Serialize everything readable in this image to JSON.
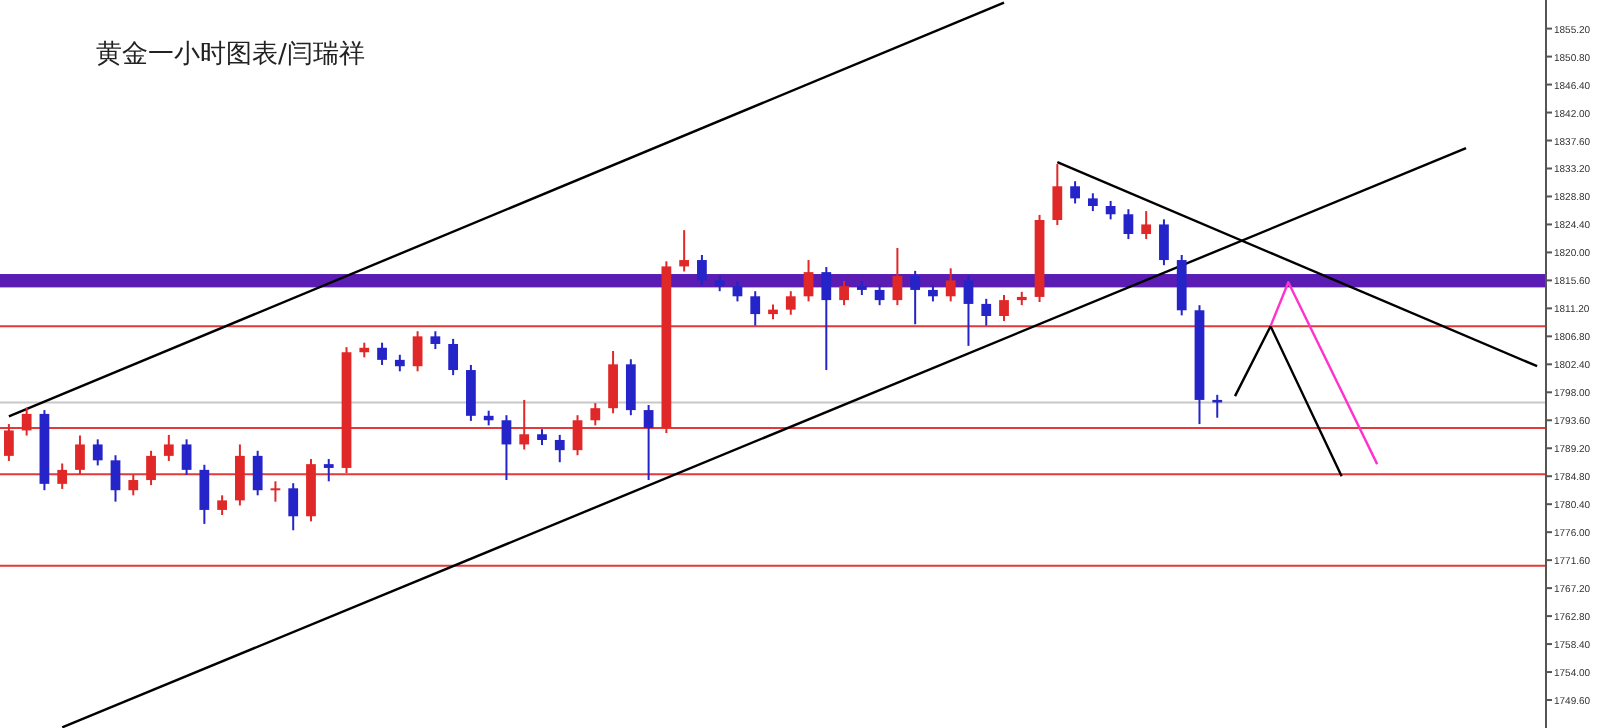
{
  "chart_data": {
    "type": "candlestick",
    "title": "黄金一小时图表/闫瑞祥",
    "categories": [
      null,
      null,
      null,
      null,
      null,
      null,
      null,
      null,
      null,
      null,
      null,
      null,
      null,
      null,
      null,
      null,
      null,
      null,
      null,
      null,
      null,
      null,
      null,
      null,
      null,
      null,
      null,
      null,
      null,
      null,
      null,
      null,
      null,
      null,
      null,
      null,
      null,
      null,
      null,
      null,
      null,
      null,
      null,
      null,
      null,
      null,
      null,
      null,
      null,
      null,
      null,
      null,
      null,
      null,
      null,
      null,
      null,
      null,
      null,
      null,
      null,
      null,
      null,
      null,
      null,
      null,
      null,
      null,
      null,
      null,
      null,
      null,
      null,
      null,
      null,
      null,
      null,
      null,
      null,
      null,
      null,
      null,
      null,
      null,
      null,
      null,
      null
    ],
    "colors": [
      "#e02828",
      "#e02828",
      "#2424c8",
      "#e02828",
      "#e02828",
      "#2424c8",
      "#2424c8",
      "#e02828",
      "#e02828",
      "#e02828",
      "#2424c8",
      "#2424c8",
      "#e02828",
      "#e02828",
      "#2424c8",
      "#e02828",
      "#2424c8",
      "#e02828",
      "#2424c8",
      "#e02828",
      "#e02828",
      "#2424c8",
      "#2424c8",
      "#e02828",
      "#2424c8",
      "#2424c8",
      "#2424c8",
      "#2424c8",
      "#2424c8",
      "#e02828",
      "#2424c8",
      "#2424c8",
      "#e02828",
      "#e02828",
      "#e02828",
      "#2424c8",
      "#2424c8",
      "#e02828",
      "#e02828",
      "#2424c8",
      "#2424c8",
      "#2424c8",
      "#2424c8",
      "#e02828",
      "#e02828",
      "#e02828",
      "#2424c8",
      "#e02828",
      "#2424c8",
      "#2424c8",
      "#e02828",
      "#2424c8",
      "#2424c8",
      "#e02828",
      "#2424c8",
      "#2424c8",
      "#e02828",
      "#e02828",
      "#e02828",
      "#e02828",
      "#2424c8",
      "#2424c8",
      "#2424c8",
      "#2424c8",
      "#e02828",
      "#2424c8",
      "#2424c8",
      "#2424c8",
      "#2424c8",
      null,
      null,
      null,
      null,
      null,
      null,
      null,
      null,
      null,
      null,
      null,
      null,
      null,
      null,
      null,
      null,
      null,
      null
    ],
    "ohlc": [
      [
        1788.0,
        1793.0,
        1787.2,
        1792.0
      ],
      [
        1792.0,
        1795.6,
        1791.2,
        1794.6
      ],
      [
        1794.6,
        1795.2,
        1782.6,
        1783.6
      ],
      [
        1783.6,
        1786.8,
        1782.8,
        1785.8
      ],
      [
        1785.8,
        1791.2,
        1785.0,
        1789.8
      ],
      [
        1789.8,
        1790.6,
        1786.5,
        1787.3
      ],
      [
        1787.3,
        1788.1,
        1780.8,
        1782.6
      ],
      [
        1782.6,
        1785.0,
        1781.8,
        1784.2
      ],
      [
        1784.2,
        1788.8,
        1783.4,
        1788.0
      ],
      [
        1788.0,
        1791.3,
        1787.2,
        1789.8
      ],
      [
        1789.8,
        1790.6,
        1785.0,
        1785.8
      ],
      [
        1785.8,
        1786.6,
        1777.3,
        1779.5
      ],
      [
        1779.5,
        1781.8,
        1778.7,
        1781.0
      ],
      [
        1781.0,
        1789.8,
        1780.2,
        1788.0
      ],
      [
        1788.0,
        1788.8,
        1781.8,
        1782.6
      ],
      [
        1782.6,
        1784.0,
        1780.8,
        1782.9
      ],
      [
        1782.9,
        1783.7,
        1776.3,
        1778.5
      ],
      [
        1778.5,
        1787.5,
        1777.7,
        1786.7
      ],
      [
        1786.7,
        1787.5,
        1784.0,
        1786.1
      ],
      [
        1786.1,
        1805.1,
        1785.3,
        1804.3
      ],
      [
        1804.3,
        1805.8,
        1803.5,
        1805.0
      ],
      [
        1805.0,
        1805.8,
        1802.3,
        1803.1
      ],
      [
        1803.1,
        1803.9,
        1801.3,
        1802.1
      ],
      [
        1802.1,
        1807.6,
        1801.3,
        1806.8
      ],
      [
        1806.8,
        1807.6,
        1804.8,
        1805.6
      ],
      [
        1805.6,
        1806.4,
        1800.7,
        1801.5
      ],
      [
        1801.5,
        1802.3,
        1793.5,
        1794.3
      ],
      [
        1794.3,
        1795.1,
        1792.8,
        1793.6
      ],
      [
        1793.6,
        1794.4,
        1784.2,
        1789.8
      ],
      [
        1789.8,
        1796.8,
        1789.0,
        1791.4
      ],
      [
        1791.4,
        1792.2,
        1789.7,
        1790.5
      ],
      [
        1790.5,
        1791.3,
        1787.0,
        1788.9
      ],
      [
        1788.9,
        1794.4,
        1788.1,
        1793.6
      ],
      [
        1793.6,
        1796.3,
        1792.8,
        1795.5
      ],
      [
        1795.5,
        1804.5,
        1794.7,
        1802.4
      ],
      [
        1802.4,
        1803.2,
        1794.4,
        1795.2
      ],
      [
        1795.2,
        1796.0,
        1784.2,
        1792.4
      ],
      [
        1792.4,
        1818.6,
        1791.6,
        1817.8
      ],
      [
        1817.8,
        1823.5,
        1817.0,
        1818.8
      ],
      [
        1818.8,
        1819.6,
        1814.8,
        1815.6
      ],
      [
        1815.6,
        1816.4,
        1813.9,
        1814.7
      ],
      [
        1814.7,
        1815.5,
        1812.3,
        1813.1
      ],
      [
        1813.1,
        1813.9,
        1808.5,
        1810.3
      ],
      [
        1810.3,
        1811.8,
        1809.5,
        1811.0
      ],
      [
        1811.0,
        1813.9,
        1810.2,
        1813.1
      ],
      [
        1813.1,
        1818.8,
        1812.3,
        1816.9
      ],
      [
        1816.9,
        1817.7,
        1801.5,
        1812.5
      ],
      [
        1812.5,
        1815.5,
        1811.7,
        1814.7
      ],
      [
        1814.7,
        1815.5,
        1813.3,
        1814.1
      ],
      [
        1814.1,
        1814.9,
        1811.7,
        1812.5
      ],
      [
        1812.5,
        1820.7,
        1811.7,
        1816.3
      ],
      [
        1816.3,
        1817.1,
        1808.7,
        1814.1
      ],
      [
        1814.1,
        1814.9,
        1812.3,
        1813.1
      ],
      [
        1813.1,
        1817.5,
        1812.3,
        1815.6
      ],
      [
        1815.6,
        1816.4,
        1805.3,
        1811.9
      ],
      [
        1811.9,
        1812.7,
        1808.5,
        1810.0
      ],
      [
        1810.0,
        1813.3,
        1809.2,
        1812.5
      ],
      [
        1812.5,
        1813.8,
        1811.7,
        1813.0
      ],
      [
        1813.0,
        1825.9,
        1812.2,
        1825.1
      ],
      [
        1825.1,
        1833.9,
        1824.3,
        1830.4
      ],
      [
        1830.4,
        1831.2,
        1827.7,
        1828.5
      ],
      [
        1828.5,
        1829.3,
        1826.5,
        1827.3
      ],
      [
        1827.3,
        1828.1,
        1825.2,
        1826.0
      ],
      [
        1826.0,
        1826.8,
        1822.1,
        1822.9
      ],
      [
        1822.9,
        1826.5,
        1822.1,
        1824.4
      ],
      [
        1824.4,
        1825.2,
        1818.0,
        1818.8
      ],
      [
        1818.8,
        1819.6,
        1810.1,
        1810.9
      ],
      [
        1810.9,
        1811.7,
        1793.0,
        1796.8
      ],
      [
        1796.8,
        1797.6,
        1794.0,
        1796.4
      ],
      null,
      null,
      null,
      null,
      null,
      null,
      null,
      null,
      null,
      null,
      null,
      null,
      null,
      null,
      null,
      null,
      null,
      null
    ],
    "series": [
      {
        "type": "line",
        "color": "#000000",
        "values": [
          1794.2,
          null,
          null,
          null,
          null,
          null,
          null,
          null,
          null,
          null,
          null,
          null,
          null,
          null,
          null,
          null,
          null,
          null,
          null,
          null,
          null,
          null,
          null,
          null,
          null,
          null,
          null,
          null,
          null,
          null,
          null,
          null,
          null,
          null,
          null,
          null,
          null,
          null,
          null,
          null,
          null,
          null,
          null,
          null,
          null,
          null,
          null,
          null,
          null,
          null,
          null,
          null,
          null,
          null,
          null,
          null,
          1859.3,
          null,
          null,
          null,
          null,
          null,
          null,
          null,
          null,
          null,
          null,
          null,
          null,
          null,
          null,
          null,
          null,
          null,
          null,
          null,
          null,
          null,
          null,
          null,
          null,
          null,
          null,
          null,
          null,
          null,
          null
        ]
      },
      {
        "type": "line",
        "color": "#000000",
        "values": [
          null,
          null,
          null,
          1745.3,
          null,
          null,
          null,
          null,
          null,
          null,
          null,
          null,
          null,
          null,
          null,
          null,
          null,
          null,
          null,
          null,
          null,
          null,
          null,
          null,
          null,
          null,
          null,
          null,
          null,
          null,
          null,
          null,
          null,
          null,
          null,
          null,
          null,
          null,
          null,
          null,
          null,
          null,
          null,
          null,
          null,
          null,
          null,
          null,
          null,
          null,
          null,
          null,
          null,
          null,
          null,
          null,
          null,
          null,
          null,
          null,
          null,
          null,
          null,
          null,
          null,
          null,
          null,
          null,
          null,
          null,
          null,
          null,
          null,
          null,
          null,
          null,
          null,
          null,
          null,
          null,
          null,
          null,
          1836.4,
          null,
          null,
          null,
          null
        ]
      },
      {
        "type": "line",
        "color": "#000000",
        "values": [
          null,
          null,
          null,
          null,
          null,
          null,
          null,
          null,
          null,
          null,
          null,
          null,
          null,
          null,
          null,
          null,
          null,
          null,
          null,
          null,
          null,
          null,
          null,
          null,
          null,
          null,
          null,
          null,
          null,
          null,
          null,
          null,
          null,
          null,
          null,
          null,
          null,
          null,
          null,
          null,
          null,
          null,
          null,
          null,
          null,
          null,
          null,
          null,
          null,
          null,
          null,
          null,
          null,
          null,
          null,
          null,
          null,
          null,
          null,
          1834.2,
          null,
          null,
          null,
          null,
          null,
          null,
          null,
          null,
          null,
          null,
          null,
          null,
          null,
          null,
          null,
          null,
          null,
          null,
          null,
          null,
          null,
          null,
          null,
          null,
          null,
          null,
          1802.1
        ]
      },
      {
        "type": "line",
        "color": "#000000",
        "values": [
          null,
          null,
          null,
          null,
          null,
          null,
          null,
          null,
          null,
          null,
          null,
          null,
          null,
          null,
          null,
          null,
          null,
          null,
          null,
          null,
          null,
          null,
          null,
          null,
          null,
          null,
          null,
          null,
          null,
          null,
          null,
          null,
          null,
          null,
          null,
          null,
          null,
          null,
          null,
          null,
          null,
          null,
          null,
          null,
          null,
          null,
          null,
          null,
          null,
          null,
          null,
          null,
          null,
          null,
          null,
          null,
          null,
          null,
          null,
          null,
          null,
          null,
          null,
          null,
          null,
          null,
          null,
          null,
          null,
          1797.4,
          null,
          1808.4,
          null,
          null,
          null,
          1784.8,
          null,
          null,
          null,
          null,
          null,
          null,
          null,
          null,
          null,
          null,
          null
        ]
      },
      {
        "type": "line",
        "color": "#ff33cc",
        "values": [
          null,
          null,
          null,
          null,
          null,
          null,
          null,
          null,
          null,
          null,
          null,
          null,
          null,
          null,
          null,
          null,
          null,
          null,
          null,
          null,
          null,
          null,
          null,
          null,
          null,
          null,
          null,
          null,
          null,
          null,
          null,
          null,
          null,
          null,
          null,
          null,
          null,
          null,
          null,
          null,
          null,
          null,
          null,
          null,
          null,
          null,
          null,
          null,
          null,
          null,
          null,
          null,
          null,
          null,
          null,
          null,
          null,
          null,
          null,
          null,
          null,
          null,
          null,
          null,
          null,
          null,
          null,
          null,
          null,
          null,
          null,
          1808.4,
          1815.3,
          null,
          null,
          null,
          null,
          1786.7,
          null,
          null,
          null,
          null,
          null,
          null,
          null,
          null,
          null
        ]
      }
    ],
    "ylim": [
      1745.2,
      1859.7
    ],
    "yticks": [
      {
        "value": 1749.6,
        "label": "1749.60"
      },
      {
        "value": 1754.0,
        "label": "1754.00"
      },
      {
        "value": 1758.4,
        "label": "1758.40"
      },
      {
        "value": 1762.8,
        "label": "1762.80"
      },
      {
        "value": 1767.2,
        "label": "1767.20"
      },
      {
        "value": 1771.6,
        "label": "1771.60"
      },
      {
        "value": 1776.0,
        "label": "1776.00"
      },
      {
        "value": 1780.4,
        "label": "1780.40"
      },
      {
        "value": 1784.8,
        "label": "1784.80"
      },
      {
        "value": 1789.2,
        "label": "1789.20"
      },
      {
        "value": 1793.6,
        "label": "1793.60"
      },
      {
        "value": 1798.0,
        "label": "1798.00"
      },
      {
        "value": 1802.4,
        "label": "1802.40"
      },
      {
        "value": 1806.8,
        "label": "1806.80"
      },
      {
        "value": 1811.2,
        "label": "1811.20"
      },
      {
        "value": 1815.6,
        "label": "1815.60"
      },
      {
        "value": 1820.0,
        "label": "1820.00"
      },
      {
        "value": 1824.4,
        "label": "1824.40"
      },
      {
        "value": 1828.8,
        "label": "1828.80"
      },
      {
        "value": 1833.2,
        "label": "1833.20"
      },
      {
        "value": 1837.6,
        "label": "1837.60"
      },
      {
        "value": 1842.0,
        "label": "1842.00"
      },
      {
        "value": 1846.4,
        "label": "1846.40"
      },
      {
        "value": 1850.8,
        "label": "1850.80"
      },
      {
        "value": 1855.2,
        "label": "1855.20"
      }
    ],
    "tick_labels": "y",
    "ref_lines": [
      {
        "axis": "y",
        "value": 1808.4,
        "color": "#e03a3a"
      },
      {
        "axis": "y",
        "value": 1792.4,
        "color": "#e03a3a"
      },
      {
        "axis": "y",
        "value": 1785.1,
        "color": "#e03a3a"
      },
      {
        "axis": "y",
        "value": 1770.7,
        "color": "#e03a3a"
      },
      {
        "axis": "y",
        "value": 1796.4,
        "color": "#c8c8c8"
      }
    ],
    "bands": [
      {
        "axis": "y",
        "from": 1814.5,
        "to": 1816.6,
        "color": "#5a1cb3"
      }
    ]
  }
}
